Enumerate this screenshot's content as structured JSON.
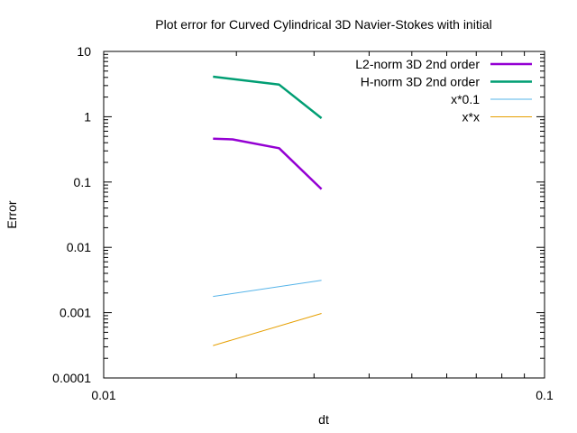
{
  "chart_data": {
    "type": "line",
    "title": "Plot error for Curved Cylindrical 3D Navier-Stokes with initial",
    "xlabel": "dt",
    "ylabel": "Error",
    "x_scale": "log",
    "y_scale": "log",
    "xlim": [
      0.01,
      0.1
    ],
    "ylim": [
      0.0001,
      10
    ],
    "x_ticks": [
      {
        "value": 0.01,
        "label": "0.01"
      },
      {
        "value": 0.1,
        "label": "0.1"
      }
    ],
    "y_ticks": [
      {
        "value": 0.0001,
        "label": "0.0001"
      },
      {
        "value": 0.001,
        "label": "0.001"
      },
      {
        "value": 0.01,
        "label": "0.01"
      },
      {
        "value": 0.1,
        "label": "0.1"
      },
      {
        "value": 1,
        "label": "1"
      },
      {
        "value": 10,
        "label": "10"
      }
    ],
    "grid": false,
    "legend_position": "top-right",
    "series": [
      {
        "name": "L2-norm 3D 2nd order",
        "color": "#9400d3",
        "width": "thick",
        "x": [
          0.0177,
          0.0196,
          0.025,
          0.0312
        ],
        "y": [
          0.46,
          0.45,
          0.33,
          0.078
        ]
      },
      {
        "name": "H-norm 3D 2nd order",
        "color": "#009e73",
        "width": "thick",
        "x": [
          0.0177,
          0.025,
          0.0312
        ],
        "y": [
          4.1,
          3.1,
          0.95
        ]
      },
      {
        "name": "x*0.1",
        "color": "#56b4e9",
        "width": "thin",
        "x": [
          0.0177,
          0.0312
        ],
        "y": [
          0.00177,
          0.00312
        ]
      },
      {
        "name": "x*x",
        "color": "#e69f00",
        "width": "thin",
        "x": [
          0.0177,
          0.0312
        ],
        "y": [
          0.000313,
          0.000973
        ]
      }
    ]
  }
}
